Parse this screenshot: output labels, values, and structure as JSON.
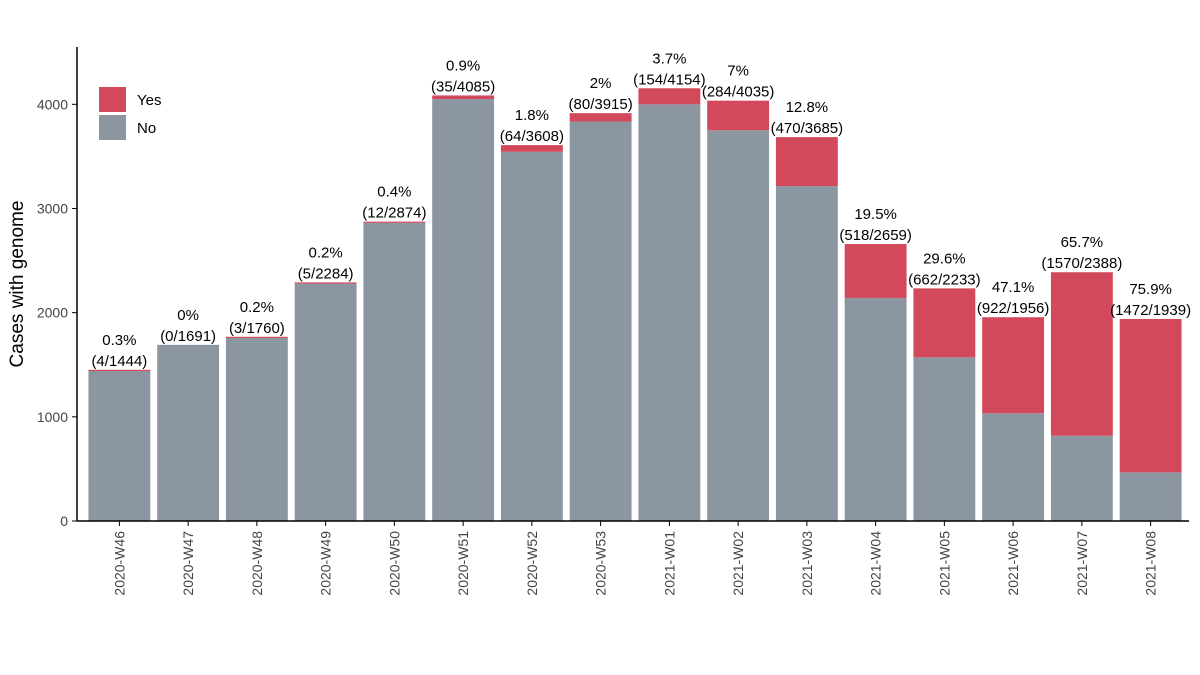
{
  "chart_data": {
    "type": "bar",
    "stacked": true,
    "title": "",
    "xlabel": "",
    "ylabel": "Cases with genome",
    "ylim": [
      0,
      4550
    ],
    "yticks": [
      0,
      1000,
      2000,
      3000,
      4000
    ],
    "grid": false,
    "legend_position": "top-left",
    "categories": [
      "2020-W46",
      "2020-W47",
      "2020-W48",
      "2020-W49",
      "2020-W50",
      "2020-W51",
      "2020-W52",
      "2020-W53",
      "2021-W01",
      "2021-W02",
      "2021-W03",
      "2021-W04",
      "2021-W05",
      "2021-W06",
      "2021-W07",
      "2021-W08"
    ],
    "series": [
      {
        "name": "No",
        "color": "#8c96a1",
        "values": [
          1440,
          1691,
          1757,
          2279,
          2862,
          4050,
          3544,
          3835,
          4000,
          3751,
          3215,
          2141,
          1571,
          1034,
          818,
          467
        ]
      },
      {
        "name": "Yes",
        "color": "#d2495b",
        "values": [
          4,
          0,
          3,
          5,
          12,
          35,
          64,
          80,
          154,
          284,
          470,
          518,
          662,
          922,
          1570,
          1472
        ]
      }
    ],
    "legend_order": [
      "Yes",
      "No"
    ],
    "pct_labels": [
      "0.3%",
      "0%",
      "0.2%",
      "0.2%",
      "0.4%",
      "0.9%",
      "1.8%",
      "2%",
      "3.7%",
      "7%",
      "12.8%",
      "19.5%",
      "29.6%",
      "47.1%",
      "65.7%",
      "75.9%"
    ],
    "frac_labels": [
      "(4/1444)",
      "(0/1691)",
      "(3/1760)",
      "(5/2284)",
      "(12/2874)",
      "(35/4085)",
      "(64/3608)",
      "(80/3915)",
      "(154/4154)",
      "(284/4035)",
      "(470/3685)",
      "(518/2659)",
      "(662/2233)",
      "(922/1956)",
      "(1570/2388)",
      "(1472/1939)"
    ]
  }
}
